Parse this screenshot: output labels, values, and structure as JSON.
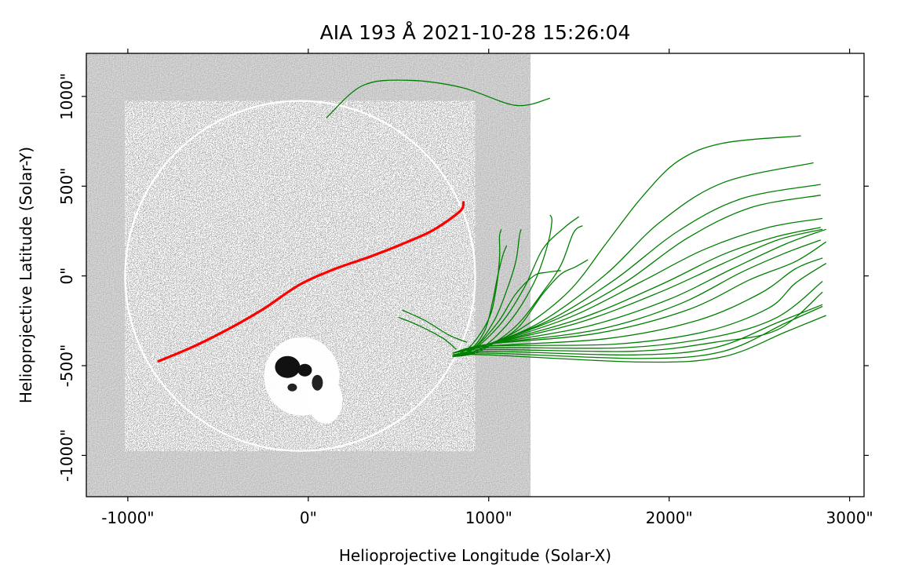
{
  "title": "AIA 193 Å 2021-10-28 15:26:04",
  "axes": {
    "xlabel": "Helioprojective Longitude (Solar-X)",
    "ylabel": "Helioprojective Latitude (Solar-Y)",
    "xlim": [
      -1230,
      3080
    ],
    "ylim": [
      -1230,
      1240
    ],
    "x_ticks": [
      {
        "value": -1000,
        "label": "-1000\""
      },
      {
        "value": 0,
        "label": "0\""
      },
      {
        "value": 1000,
        "label": "1000\""
      },
      {
        "value": 2000,
        "label": "2000\""
      },
      {
        "value": 3000,
        "label": "3000\""
      }
    ],
    "y_ticks": [
      {
        "value": -1000,
        "label": "-1000\""
      },
      {
        "value": -500,
        "label": "-500\""
      },
      {
        "value": 0,
        "label": "0\""
      },
      {
        "value": 500,
        "label": "500\""
      },
      {
        "value": 1000,
        "label": "1000\""
      }
    ]
  },
  "image": {
    "extent_x": [
      -1230,
      1230
    ],
    "extent_y": [
      -1230,
      1240
    ],
    "colormap": "gray",
    "limb_radius_arcsec": 970,
    "limb_center": [
      -45,
      0
    ]
  },
  "overlays": {
    "red_track": {
      "color": "#ff0000",
      "points": [
        [
          -830,
          -475
        ],
        [
          -650,
          -400
        ],
        [
          -450,
          -300
        ],
        [
          -250,
          -185
        ],
        [
          -50,
          -50
        ],
        [
          150,
          40
        ],
        [
          350,
          110
        ],
        [
          550,
          190
        ],
        [
          700,
          260
        ],
        [
          840,
          360
        ],
        [
          860,
          410
        ]
      ]
    },
    "field_line_color": "#008000",
    "field_lines": [
      {
        "points": [
          [
            100,
            880
          ],
          [
            300,
            1060
          ],
          [
            550,
            1090
          ],
          [
            850,
            1050
          ],
          [
            1150,
            950
          ],
          [
            1340,
            990
          ]
        ]
      },
      {
        "points": [
          [
            800,
            -430
          ],
          [
            1000,
            -380
          ],
          [
            1200,
            -280
          ],
          [
            1450,
            -80
          ],
          [
            1650,
            180
          ],
          [
            1850,
            440
          ],
          [
            2050,
            640
          ],
          [
            2300,
            740
          ],
          [
            2730,
            780
          ]
        ]
      },
      {
        "points": [
          [
            800,
            -430
          ],
          [
            1000,
            -380
          ],
          [
            1300,
            -250
          ],
          [
            1650,
            10
          ],
          [
            1950,
            300
          ],
          [
            2300,
            520
          ],
          [
            2800,
            630
          ]
        ]
      },
      {
        "points": [
          [
            800,
            -430
          ],
          [
            1000,
            -380
          ],
          [
            1350,
            -240
          ],
          [
            1700,
            -20
          ],
          [
            2050,
            250
          ],
          [
            2400,
            430
          ],
          [
            2840,
            510
          ]
        ]
      },
      {
        "points": [
          [
            800,
            -430
          ],
          [
            1000,
            -380
          ],
          [
            1400,
            -230
          ],
          [
            1750,
            -40
          ],
          [
            2100,
            210
          ],
          [
            2450,
            380
          ],
          [
            2840,
            450
          ]
        ]
      },
      {
        "points": [
          [
            800,
            -430
          ],
          [
            1000,
            -380
          ],
          [
            1450,
            -230
          ],
          [
            1850,
            -30
          ],
          [
            2200,
            150
          ],
          [
            2550,
            270
          ],
          [
            2850,
            320
          ]
        ]
      },
      {
        "points": [
          [
            800,
            -430
          ],
          [
            1000,
            -380
          ],
          [
            1500,
            -240
          ],
          [
            1950,
            -50
          ],
          [
            2300,
            120
          ],
          [
            2600,
            220
          ],
          [
            2840,
            270
          ]
        ]
      },
      {
        "points": [
          [
            800,
            -430
          ],
          [
            1000,
            -380
          ],
          [
            1500,
            -260
          ],
          [
            1950,
            -90
          ],
          [
            2300,
            70
          ],
          [
            2600,
            200
          ],
          [
            2850,
            260
          ]
        ]
      },
      {
        "points": [
          [
            800,
            -430
          ],
          [
            1000,
            -380
          ],
          [
            1550,
            -280
          ],
          [
            2000,
            -130
          ],
          [
            2350,
            40
          ],
          [
            2650,
            180
          ],
          [
            2870,
            260
          ]
        ]
      },
      {
        "points": [
          [
            800,
            -430
          ],
          [
            1000,
            -380
          ],
          [
            1600,
            -300
          ],
          [
            2050,
            -160
          ],
          [
            2400,
            20
          ],
          [
            2650,
            130
          ],
          [
            2840,
            200
          ]
        ]
      },
      {
        "points": [
          [
            800,
            -430
          ],
          [
            1000,
            -380
          ],
          [
            1600,
            -320
          ],
          [
            2100,
            -190
          ],
          [
            2450,
            -20
          ],
          [
            2700,
            80
          ],
          [
            2870,
            190
          ]
        ]
      },
      {
        "points": [
          [
            800,
            -430
          ],
          [
            1000,
            -390
          ],
          [
            1650,
            -350
          ],
          [
            2150,
            -250
          ],
          [
            2500,
            -100
          ],
          [
            2700,
            40
          ],
          [
            2850,
            100
          ]
        ]
      },
      {
        "points": [
          [
            800,
            -430
          ],
          [
            1000,
            -390
          ],
          [
            1700,
            -380
          ],
          [
            2200,
            -310
          ],
          [
            2550,
            -180
          ],
          [
            2700,
            -40
          ],
          [
            2870,
            70
          ]
        ]
      },
      {
        "points": [
          [
            800,
            -430
          ],
          [
            1000,
            -400
          ],
          [
            1750,
            -400
          ],
          [
            2250,
            -340
          ],
          [
            2600,
            -230
          ],
          [
            2850,
            -30
          ]
        ]
      },
      {
        "points": [
          [
            800,
            -430
          ],
          [
            1000,
            -410
          ],
          [
            1800,
            -420
          ],
          [
            2250,
            -370
          ],
          [
            2600,
            -300
          ],
          [
            2850,
            -90
          ]
        ]
      },
      {
        "points": [
          [
            800,
            -440
          ],
          [
            1000,
            -420
          ],
          [
            1800,
            -440
          ],
          [
            2250,
            -400
          ],
          [
            2600,
            -260
          ],
          [
            2850,
            -160
          ]
        ]
      },
      {
        "points": [
          [
            800,
            -440
          ],
          [
            1000,
            -430
          ],
          [
            1850,
            -460
          ],
          [
            2300,
            -420
          ],
          [
            2650,
            -260
          ],
          [
            2850,
            -170
          ]
        ]
      },
      {
        "points": [
          [
            800,
            -440
          ],
          [
            1000,
            -440
          ],
          [
            1850,
            -480
          ],
          [
            2300,
            -450
          ],
          [
            2650,
            -310
          ],
          [
            2870,
            -220
          ]
        ]
      },
      {
        "points": [
          [
            800,
            -450
          ],
          [
            950,
            -420
          ],
          [
            1150,
            -280
          ],
          [
            1300,
            -90
          ],
          [
            1400,
            60
          ],
          [
            1470,
            240
          ],
          [
            1520,
            280
          ]
        ]
      },
      {
        "points": [
          [
            800,
            -450
          ],
          [
            950,
            -410
          ],
          [
            1120,
            -250
          ],
          [
            1250,
            -40
          ],
          [
            1320,
            150
          ],
          [
            1350,
            300
          ],
          [
            1340,
            340
          ]
        ]
      },
      {
        "points": [
          [
            800,
            -450
          ],
          [
            950,
            -410
          ],
          [
            1150,
            -300
          ],
          [
            1300,
            -100
          ],
          [
            1400,
            10
          ],
          [
            1480,
            50
          ],
          [
            1550,
            90
          ]
        ]
      },
      {
        "points": [
          [
            800,
            -450
          ],
          [
            930,
            -400
          ],
          [
            1080,
            -250
          ],
          [
            1200,
            -60
          ],
          [
            1300,
            150
          ],
          [
            1420,
            270
          ],
          [
            1500,
            330
          ]
        ]
      },
      {
        "points": [
          [
            800,
            -450
          ],
          [
            920,
            -400
          ],
          [
            1030,
            -250
          ],
          [
            1100,
            -80
          ],
          [
            1150,
            80
          ],
          [
            1170,
            220
          ],
          [
            1180,
            260
          ]
        ]
      },
      {
        "points": [
          [
            800,
            -450
          ],
          [
            900,
            -390
          ],
          [
            1000,
            -240
          ],
          [
            1040,
            -80
          ],
          [
            1060,
            100
          ],
          [
            1060,
            220
          ],
          [
            1070,
            260
          ]
        ]
      },
      {
        "points": [
          [
            800,
            -450
          ],
          [
            920,
            -400
          ],
          [
            1050,
            -260
          ],
          [
            1150,
            -100
          ],
          [
            1250,
            0
          ],
          [
            1320,
            20
          ],
          [
            1400,
            30
          ]
        ]
      },
      {
        "points": [
          [
            800,
            -450
          ],
          [
            900,
            -410
          ],
          [
            980,
            -300
          ],
          [
            1020,
            -150
          ],
          [
            1050,
            0
          ],
          [
            1080,
            120
          ],
          [
            1100,
            170
          ]
        ]
      },
      {
        "points": [
          [
            500,
            -230
          ],
          [
            620,
            -280
          ],
          [
            750,
            -350
          ],
          [
            820,
            -410
          ]
        ]
      },
      {
        "points": [
          [
            520,
            -190
          ],
          [
            650,
            -250
          ],
          [
            780,
            -330
          ],
          [
            880,
            -370
          ]
        ]
      }
    ]
  }
}
